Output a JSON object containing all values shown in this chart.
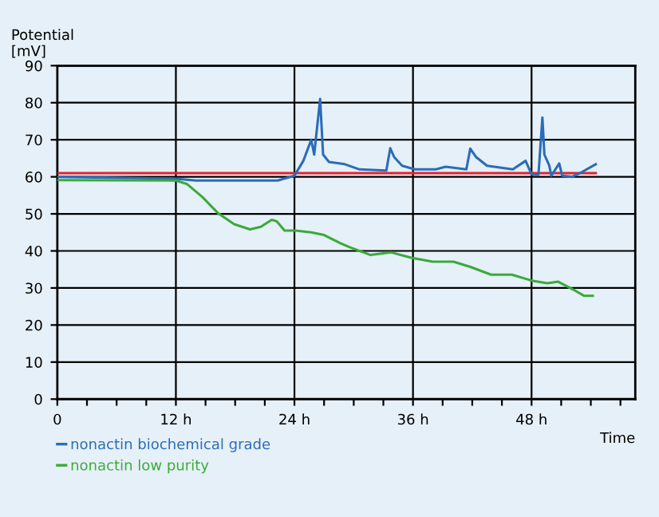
{
  "chart_data": {
    "type": "line",
    "ylabel": "Potential\n[mV]",
    "xlabel": "Time",
    "xlim": [
      0,
      58.5
    ],
    "ylim": [
      0,
      90
    ],
    "xticks": [
      0,
      {
        "value": 3,
        "label": null
      },
      {
        "value": 6,
        "label": null
      },
      {
        "value": 9,
        "label": null
      },
      {
        "value": 12,
        "label": "12 h"
      },
      {
        "value": 15,
        "label": null
      },
      {
        "value": 18,
        "label": null
      },
      {
        "value": 21,
        "label": null
      },
      {
        "value": 24,
        "label": "24 h"
      },
      {
        "value": 27,
        "label": null
      },
      {
        "value": 30,
        "label": null
      },
      {
        "value": 33,
        "label": null
      },
      {
        "value": 36,
        "label": "36 h"
      },
      {
        "value": 39,
        "label": null
      },
      {
        "value": 42,
        "label": null
      },
      {
        "value": 45,
        "label": null
      },
      {
        "value": 48,
        "label": "48 h"
      },
      {
        "value": 51,
        "label": null
      },
      {
        "value": 54,
        "label": null
      },
      {
        "value": 57,
        "label": null
      }
    ],
    "yticks": [
      0,
      10,
      20,
      30,
      40,
      50,
      60,
      70,
      80,
      90
    ],
    "grid": true,
    "legend": "bottom left",
    "series": [
      {
        "color": "#e8202a",
        "x": [
          0,
          54.5
        ],
        "values": [
          61,
          61
        ]
      },
      {
        "name": "nonactin biochemical grade",
        "color": "#2b6cb8",
        "x": [
          0,
          12,
          14,
          20,
          22.3,
          24,
          24.9,
          25.7,
          26.0,
          26.2,
          26.6,
          26.9,
          27.5,
          29.1,
          30.6,
          33.3,
          33.7,
          34.1,
          34.9,
          36.2,
          38.3,
          39.3,
          41.4,
          41.8,
          42.4,
          43.5,
          46.1,
          47.4,
          48,
          48.7,
          49.1,
          49.3,
          49.8,
          50,
          50.8,
          51.1,
          52.1,
          52.9,
          54.5
        ],
        "values": [
          60,
          59.5,
          59,
          59,
          59,
          60.3,
          64.3,
          70,
          66,
          71,
          81,
          66,
          64,
          63.4,
          62,
          61.7,
          67.7,
          65.3,
          63,
          62,
          62,
          62.7,
          62,
          67.6,
          65.3,
          63,
          62,
          64.3,
          60.7,
          60.6,
          76,
          66,
          63,
          60.3,
          63.6,
          60.3,
          60,
          61,
          63.4
        ]
      },
      {
        "name": "nonactin low purity",
        "color": "#3aaa3a",
        "x": [
          0,
          12,
          13.1,
          14.7,
          16.3,
          17.9,
          19.5,
          20.6,
          21.7,
          22.2,
          23,
          24.1,
          25.7,
          27,
          28.7,
          29.6,
          31.7,
          33.8,
          35.9,
          38,
          40.1,
          41.8,
          43.9,
          46,
          48,
          49.6,
          50.7,
          52.2,
          53.3,
          54.2
        ],
        "values": [
          59.1,
          59,
          58.1,
          54.5,
          50.1,
          47.2,
          45.8,
          46.5,
          48.4,
          48,
          45.5,
          45.5,
          45,
          44.3,
          42,
          41,
          38.9,
          39.6,
          38.1,
          37.1,
          37.1,
          35.7,
          33.6,
          33.6,
          32,
          31.3,
          31.7,
          29.6,
          27.9,
          27.9
        ]
      }
    ]
  }
}
